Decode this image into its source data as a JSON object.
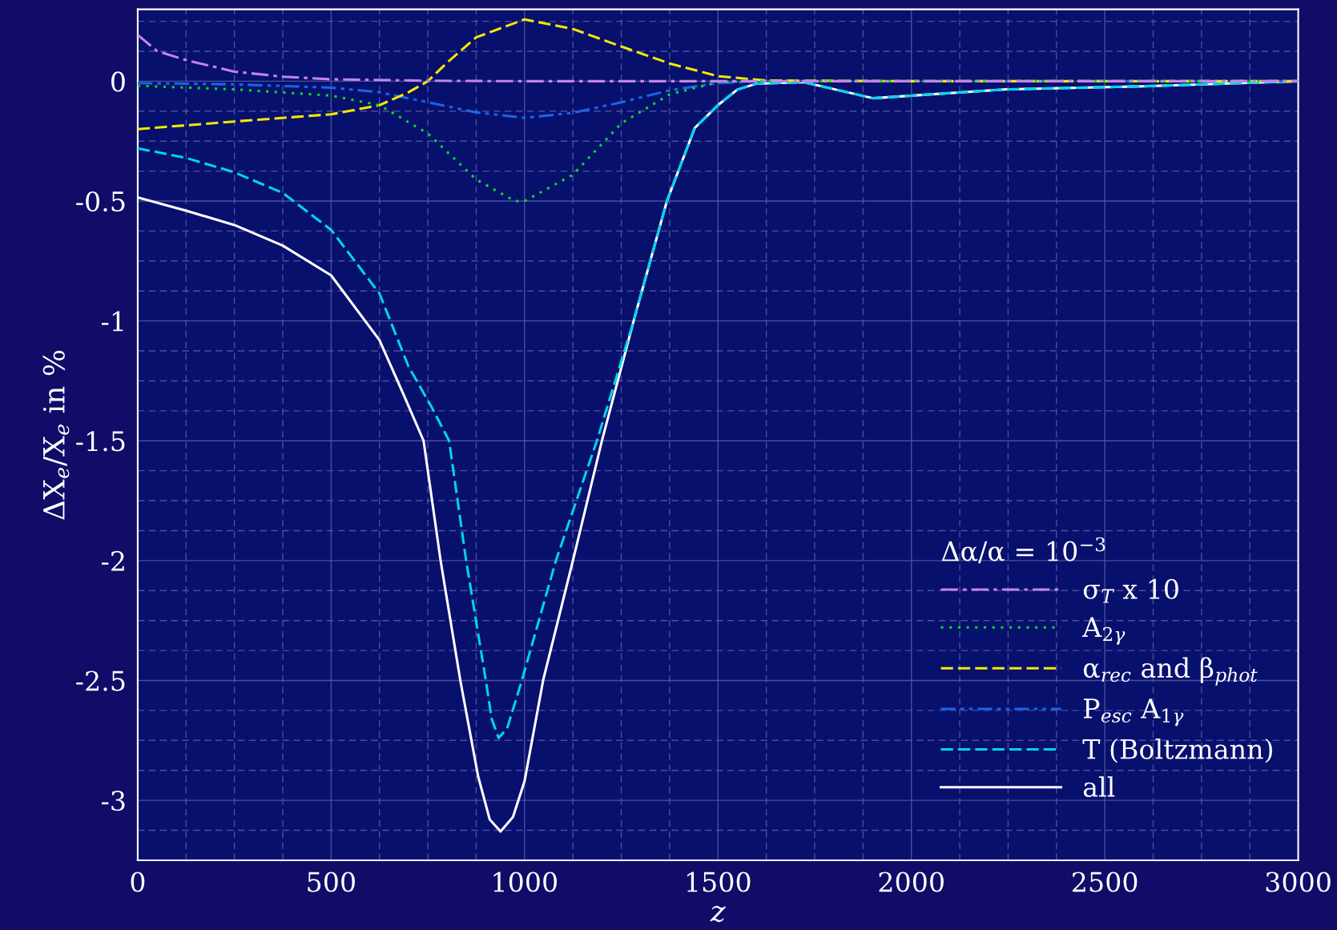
{
  "chart_data": {
    "type": "line",
    "xlabel": "z",
    "ylabel": "ΔX$_{e}$/X$_{e}$ in %",
    "legend_title": "Δα/α = 10$^{−3}$",
    "series": [
      {
        "name": "σ$_{T}$ x 10",
        "color": "#c484e8",
        "line_style": "dashdot",
        "x": [
          0,
          50,
          125,
          250,
          375,
          500,
          750,
          1000,
          1500,
          2000,
          3000
        ],
        "values": [
          0.193,
          0.126,
          0.088,
          0.04,
          0.019,
          0.008,
          0.002,
          0,
          0,
          0,
          0
        ]
      },
      {
        "name": "A$_{2γ}$",
        "color": "#00e020",
        "line_style": "dotted",
        "x": [
          0,
          250,
          500,
          625,
          750,
          875,
          975,
          1000,
          1125,
          1250,
          1375,
          1500,
          1600,
          2000,
          3000
        ],
        "values": [
          -0.019,
          -0.034,
          -0.06,
          -0.1,
          -0.218,
          -0.41,
          -0.5,
          -0.5,
          -0.39,
          -0.176,
          -0.055,
          -0.004,
          0,
          0,
          0
        ]
      },
      {
        "name": "α$_{rec}$ and β$_{phot}$",
        "color": "#f2e800",
        "line_style": "dashed",
        "x": [
          0,
          250,
          500,
          625,
          700,
          750,
          800,
          875,
          1000,
          1125,
          1250,
          1375,
          1500,
          1625,
          2000,
          3000
        ],
        "values": [
          -0.2,
          -0.168,
          -0.138,
          -0.1,
          -0.046,
          0,
          0.078,
          0.183,
          0.258,
          0.218,
          0.145,
          0.074,
          0.021,
          0.003,
          0,
          0
        ]
      },
      {
        "name": "P$_{esc}$ A$_{1γ}$",
        "color": "#1a64e8",
        "line_style": "dashdotdot",
        "x": [
          0,
          250,
          500,
          625,
          750,
          875,
          1000,
          1125,
          1250,
          1375,
          1500,
          1625,
          2000,
          3000
        ],
        "values": [
          -0.008,
          -0.013,
          -0.027,
          -0.046,
          -0.088,
          -0.13,
          -0.153,
          -0.132,
          -0.088,
          -0.038,
          -0.008,
          0,
          0,
          0
        ]
      },
      {
        "name": "T (Boltzmann)",
        "color": "#00d4ee",
        "line_style": "dashed",
        "x": [
          0,
          125,
          250,
          375,
          500,
          625,
          700,
          760,
          805,
          849,
          900,
          915,
          933,
          955,
          993,
          1081,
          1187,
          1282,
          1368,
          1440,
          1500,
          1550,
          1600,
          1722,
          1901,
          2246,
          2600,
          3000
        ],
        "values": [
          -0.28,
          -0.32,
          -0.38,
          -0.466,
          -0.62,
          -0.886,
          -1.19,
          -1.36,
          -1.5,
          -2.0,
          -2.5,
          -2.66,
          -2.74,
          -2.7,
          -2.5,
          -2.0,
          -1.5,
          -1.0,
          -0.5,
          -0.195,
          -0.1,
          -0.035,
          -0.01,
          -0.004,
          -0.071,
          -0.034,
          -0.021,
          0
        ]
      },
      {
        "name": "all",
        "color": "#ffffff",
        "line_style": "solid",
        "x": [
          0,
          125,
          250,
          375,
          500,
          625,
          688,
          739,
          783,
          834,
          880,
          910,
          938,
          970,
          1000,
          1048,
          1125,
          1200,
          1282,
          1368,
          1440,
          1500,
          1550,
          1600,
          1722,
          1901,
          2246,
          2600,
          3000
        ],
        "values": [
          -0.485,
          -0.54,
          -0.6,
          -0.686,
          -0.81,
          -1.08,
          -1.31,
          -1.5,
          -2.0,
          -2.5,
          -2.9,
          -3.08,
          -3.13,
          -3.07,
          -2.92,
          -2.5,
          -2.0,
          -1.5,
          -1.0,
          -0.5,
          -0.195,
          -0.1,
          -0.035,
          -0.01,
          -0.004,
          -0.071,
          -0.034,
          -0.021,
          0
        ]
      }
    ],
    "xlim": [
      0,
      3000
    ],
    "xticks": [
      0,
      {
        "value": 125,
        "label": null
      },
      {
        "value": 250,
        "label": null
      },
      {
        "value": 375,
        "label": null
      },
      500,
      {
        "value": 625,
        "label": null
      },
      {
        "value": 750,
        "label": null
      },
      {
        "value": 875,
        "label": null
      },
      1000,
      {
        "value": 1125,
        "label": null
      },
      {
        "value": 1250,
        "label": null
      },
      {
        "value": 1375,
        "label": null
      },
      1500,
      {
        "value": 1625,
        "label": null
      },
      {
        "value": 1750,
        "label": null
      },
      {
        "value": 1875,
        "label": null
      },
      2000,
      {
        "value": 2125,
        "label": null
      },
      {
        "value": 2250,
        "label": null
      },
      {
        "value": 2375,
        "label": null
      },
      2500,
      {
        "value": 2625,
        "label": null
      },
      {
        "value": 2750,
        "label": null
      },
      {
        "value": 2875,
        "label": null
      },
      3000
    ],
    "ylim": [
      -3.25,
      0.3
    ],
    "yticks": [
      {
        "value": 0.25,
        "label": null
      },
      {
        "value": 0.125,
        "label": null
      },
      0,
      {
        "value": -0.125,
        "label": null
      },
      {
        "value": -0.25,
        "label": null
      },
      {
        "value": -0.375,
        "label": null
      },
      {
        "value": -0.5,
        "label": "-0.5"
      },
      {
        "value": -0.625,
        "label": null
      },
      {
        "value": -0.75,
        "label": null
      },
      {
        "value": -0.875,
        "label": null
      },
      {
        "value": -1,
        "label": "-1"
      },
      {
        "value": -1.125,
        "label": null
      },
      {
        "value": -1.25,
        "label": null
      },
      {
        "value": -1.375,
        "label": null
      },
      {
        "value": -1.5,
        "label": "-1.5"
      },
      {
        "value": -1.625,
        "label": null
      },
      {
        "value": -1.75,
        "label": null
      },
      {
        "value": -1.875,
        "label": null
      },
      {
        "value": -2,
        "label": "-2"
      },
      {
        "value": -2.125,
        "label": null
      },
      {
        "value": -2.25,
        "label": null
      },
      {
        "value": -2.375,
        "label": null
      },
      {
        "value": -2.5,
        "label": "-2.5"
      },
      {
        "value": -2.625,
        "label": null
      },
      {
        "value": -2.75,
        "label": null
      },
      {
        "value": -2.875,
        "label": null
      },
      {
        "value": -3,
        "label": "-3"
      },
      {
        "value": -3.125,
        "label": null
      }
    ],
    "grid": true,
    "legend": "bottom right"
  }
}
